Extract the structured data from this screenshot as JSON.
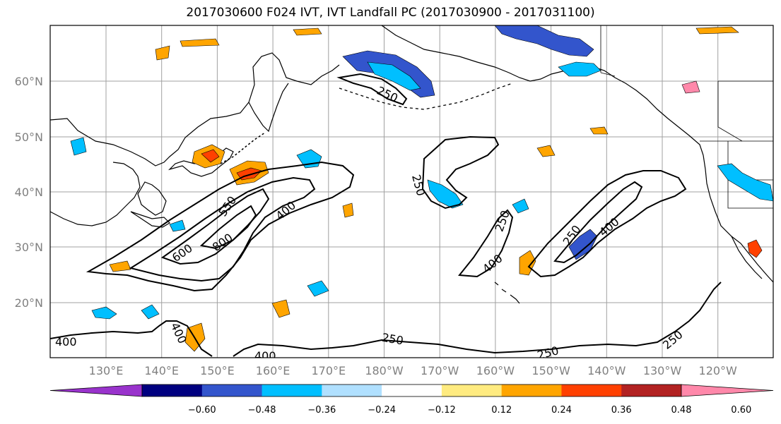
{
  "title": "2017030600 F024 IVT, IVT Landfall PC (2017030900 - 2017031100)",
  "map": {
    "lon_ticks": [
      "130°E",
      "140°E",
      "150°E",
      "160°E",
      "170°E",
      "180°W",
      "170°W",
      "160°W",
      "150°W",
      "140°W",
      "130°W",
      "120°W"
    ],
    "lat_ticks": [
      "60°N",
      "50°N",
      "40°N",
      "30°N",
      "20°N"
    ],
    "contour_labels": [
      "250",
      "250",
      "250",
      "250",
      "250",
      "250",
      "400",
      "400",
      "400",
      "400",
      "400",
      "600",
      "800",
      "550"
    ]
  },
  "colorbar": {
    "colors": [
      "#9933cc",
      "#000080",
      "#3355cc",
      "#00bfff",
      "#b0e0ff",
      "#ffffff",
      "#ffeb80",
      "#ffa500",
      "#ff4000",
      "#b22222",
      "#ff88aa"
    ],
    "labels": [
      "−0.60",
      "−0.48",
      "−0.36",
      "−0.24",
      "−0.12",
      "0.12",
      "0.24",
      "0.36",
      "0.48",
      "0.60"
    ]
  }
}
